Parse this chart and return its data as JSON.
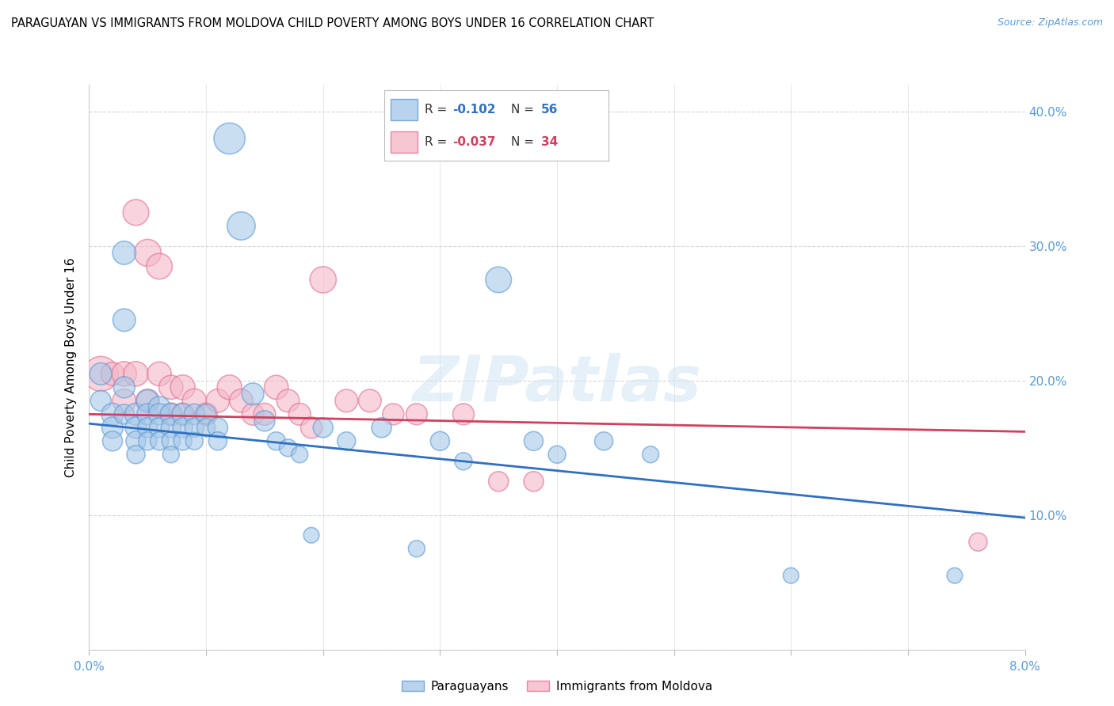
{
  "title": "PARAGUAYAN VS IMMIGRANTS FROM MOLDOVA CHILD POVERTY AMONG BOYS UNDER 16 CORRELATION CHART",
  "source": "Source: ZipAtlas.com",
  "ylabel": "Child Poverty Among Boys Under 16",
  "blue_color": "#a8c8e8",
  "pink_color": "#f4b8c8",
  "blue_edge_color": "#5b9bd5",
  "pink_edge_color": "#e07090",
  "blue_line_color": "#3070c0",
  "pink_line_color": "#d04060",
  "xlim": [
    0.0,
    0.08
  ],
  "ylim": [
    0.0,
    0.42
  ],
  "blue_r": "-0.102",
  "blue_n": "56",
  "pink_r": "-0.037",
  "pink_n": "34",
  "blue_scatter_x": [
    0.001,
    0.001,
    0.002,
    0.002,
    0.002,
    0.003,
    0.003,
    0.003,
    0.003,
    0.004,
    0.004,
    0.004,
    0.004,
    0.005,
    0.005,
    0.005,
    0.005,
    0.006,
    0.006,
    0.006,
    0.006,
    0.007,
    0.007,
    0.007,
    0.007,
    0.008,
    0.008,
    0.008,
    0.009,
    0.009,
    0.009,
    0.01,
    0.01,
    0.011,
    0.011,
    0.012,
    0.013,
    0.014,
    0.015,
    0.016,
    0.017,
    0.018,
    0.019,
    0.02,
    0.022,
    0.025,
    0.028,
    0.03,
    0.032,
    0.035,
    0.038,
    0.04,
    0.044,
    0.048,
    0.06,
    0.074
  ],
  "blue_scatter_y": [
    0.205,
    0.185,
    0.175,
    0.165,
    0.155,
    0.295,
    0.245,
    0.195,
    0.175,
    0.175,
    0.165,
    0.155,
    0.145,
    0.185,
    0.175,
    0.165,
    0.155,
    0.18,
    0.175,
    0.165,
    0.155,
    0.175,
    0.165,
    0.155,
    0.145,
    0.175,
    0.165,
    0.155,
    0.175,
    0.165,
    0.155,
    0.175,
    0.165,
    0.165,
    0.155,
    0.38,
    0.315,
    0.19,
    0.17,
    0.155,
    0.15,
    0.145,
    0.085,
    0.165,
    0.155,
    0.165,
    0.075,
    0.155,
    0.14,
    0.275,
    0.155,
    0.145,
    0.155,
    0.145,
    0.055,
    0.055
  ],
  "blue_scatter_sizes": [
    80,
    70,
    80,
    75,
    65,
    90,
    85,
    75,
    65,
    80,
    75,
    65,
    55,
    80,
    75,
    65,
    55,
    80,
    75,
    65,
    55,
    75,
    65,
    55,
    45,
    75,
    65,
    55,
    70,
    60,
    50,
    65,
    55,
    65,
    55,
    160,
    130,
    80,
    70,
    55,
    50,
    45,
    40,
    65,
    55,
    65,
    45,
    60,
    50,
    110,
    60,
    50,
    55,
    45,
    40,
    40
  ],
  "pink_scatter_x": [
    0.001,
    0.002,
    0.003,
    0.003,
    0.004,
    0.004,
    0.005,
    0.005,
    0.006,
    0.006,
    0.007,
    0.007,
    0.008,
    0.008,
    0.009,
    0.01,
    0.011,
    0.012,
    0.013,
    0.014,
    0.015,
    0.016,
    0.017,
    0.018,
    0.019,
    0.02,
    0.022,
    0.024,
    0.026,
    0.028,
    0.032,
    0.035,
    0.038,
    0.076
  ],
  "pink_scatter_y": [
    0.205,
    0.205,
    0.205,
    0.185,
    0.325,
    0.205,
    0.295,
    0.185,
    0.285,
    0.205,
    0.195,
    0.175,
    0.175,
    0.195,
    0.185,
    0.175,
    0.185,
    0.195,
    0.185,
    0.175,
    0.175,
    0.195,
    0.185,
    0.175,
    0.165,
    0.275,
    0.185,
    0.185,
    0.175,
    0.175,
    0.175,
    0.125,
    0.125,
    0.08
  ],
  "pink_scatter_sizes": [
    200,
    90,
    100,
    90,
    110,
    100,
    120,
    90,
    110,
    95,
    95,
    85,
    85,
    100,
    95,
    85,
    90,
    100,
    90,
    80,
    80,
    95,
    85,
    80,
    75,
    115,
    85,
    85,
    75,
    75,
    75,
    65,
    65,
    55
  ],
  "blue_line_x0": 0.0,
  "blue_line_y0": 0.168,
  "blue_line_x1": 0.08,
  "blue_line_y1": 0.098,
  "pink_line_x0": 0.0,
  "pink_line_y0": 0.175,
  "pink_line_x1": 0.08,
  "pink_line_y1": 0.162
}
